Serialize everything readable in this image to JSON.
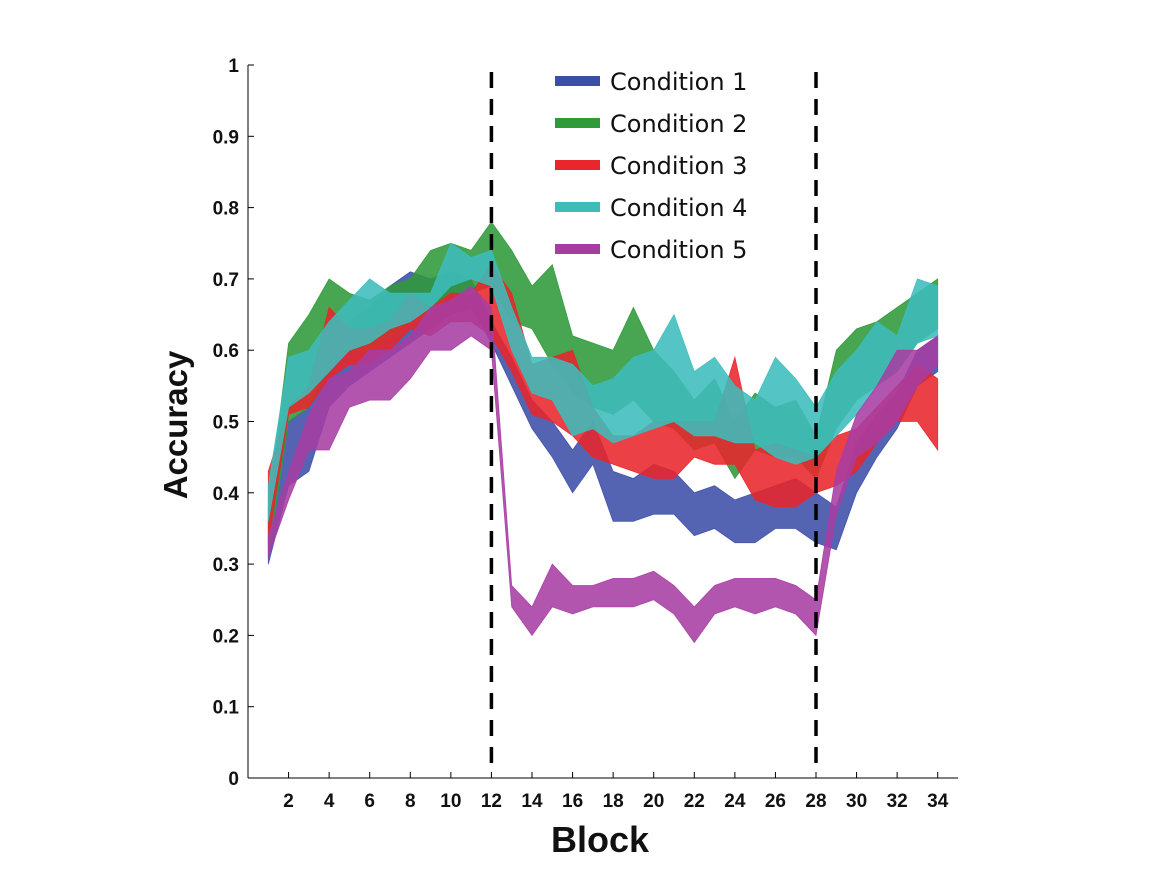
{
  "chart_data": {
    "type": "area",
    "xlabel": "Block",
    "ylabel": "Accuracy",
    "xlim": [
      0,
      35
    ],
    "ylim": [
      0,
      1
    ],
    "xticks": [
      2,
      4,
      6,
      8,
      10,
      12,
      14,
      16,
      18,
      20,
      22,
      24,
      26,
      28,
      30,
      32,
      34
    ],
    "yticks": [
      0,
      0.1,
      0.2,
      0.3,
      0.4,
      0.5,
      0.6,
      0.7,
      0.8,
      0.9,
      1
    ],
    "ytick_labels": [
      "0",
      "0.1",
      "0.2",
      "0.3",
      "0.4",
      "0.5",
      "0.6",
      "0.7",
      "0.8",
      "0.9",
      "1"
    ],
    "vlines": [
      12,
      28
    ],
    "legend_position": "top-center",
    "x": [
      1,
      2,
      3,
      4,
      5,
      6,
      7,
      8,
      9,
      10,
      11,
      12,
      13,
      14,
      15,
      16,
      17,
      18,
      19,
      20,
      21,
      22,
      23,
      24,
      25,
      26,
      27,
      28,
      29,
      30,
      31,
      32,
      33,
      34
    ],
    "series": [
      {
        "name": "Condition 1",
        "color": "#3c4fa8",
        "lower": [
          0.3,
          0.41,
          0.43,
          0.52,
          0.55,
          0.57,
          0.59,
          0.61,
          0.63,
          0.65,
          0.66,
          0.61,
          0.55,
          0.49,
          0.45,
          0.4,
          0.44,
          0.36,
          0.36,
          0.37,
          0.37,
          0.34,
          0.35,
          0.33,
          0.33,
          0.35,
          0.35,
          0.33,
          0.32,
          0.4,
          0.45,
          0.49,
          0.55,
          0.57
        ],
        "upper": [
          0.36,
          0.5,
          0.52,
          0.6,
          0.64,
          0.66,
          0.69,
          0.71,
          0.7,
          0.71,
          0.7,
          0.64,
          0.59,
          0.53,
          0.5,
          0.46,
          0.5,
          0.43,
          0.42,
          0.44,
          0.43,
          0.4,
          0.41,
          0.39,
          0.4,
          0.41,
          0.42,
          0.4,
          0.38,
          0.47,
          0.51,
          0.54,
          0.6,
          0.62
        ]
      },
      {
        "name": "Condition 2",
        "color": "#2f9a3a",
        "lower": [
          0.31,
          0.5,
          0.52,
          0.58,
          0.6,
          0.6,
          0.62,
          0.64,
          0.65,
          0.68,
          0.68,
          0.69,
          0.64,
          0.63,
          0.58,
          0.54,
          0.52,
          0.51,
          0.53,
          0.5,
          0.49,
          0.46,
          0.47,
          0.42,
          0.46,
          0.45,
          0.45,
          0.42,
          0.49,
          0.53,
          0.55,
          0.57,
          0.61,
          0.63
        ],
        "upper": [
          0.38,
          0.61,
          0.65,
          0.7,
          0.68,
          0.67,
          0.69,
          0.7,
          0.74,
          0.75,
          0.74,
          0.78,
          0.74,
          0.69,
          0.72,
          0.62,
          0.61,
          0.6,
          0.66,
          0.6,
          0.57,
          0.53,
          0.56,
          0.5,
          0.54,
          0.52,
          0.53,
          0.48,
          0.6,
          0.63,
          0.64,
          0.66,
          0.68,
          0.7
        ]
      },
      {
        "name": "Condition 3",
        "color": "#e8262b",
        "lower": [
          0.33,
          0.51,
          0.52,
          0.56,
          0.58,
          0.58,
          0.6,
          0.63,
          0.62,
          0.64,
          0.64,
          0.62,
          0.57,
          0.51,
          0.5,
          0.48,
          0.45,
          0.44,
          0.43,
          0.42,
          0.42,
          0.45,
          0.44,
          0.44,
          0.39,
          0.38,
          0.38,
          0.4,
          0.41,
          0.43,
          0.47,
          0.5,
          0.5,
          0.46
        ],
        "upper": [
          0.43,
          0.52,
          0.55,
          0.66,
          0.63,
          0.63,
          0.64,
          0.68,
          0.66,
          0.68,
          0.68,
          0.72,
          0.68,
          0.58,
          0.59,
          0.6,
          0.52,
          0.48,
          0.48,
          0.5,
          0.5,
          0.5,
          0.5,
          0.59,
          0.46,
          0.47,
          0.46,
          0.45,
          0.48,
          0.49,
          0.52,
          0.55,
          0.58,
          0.56
        ]
      },
      {
        "name": "Condition 4",
        "color": "#3dbcbc",
        "lower": [
          0.36,
          0.52,
          0.54,
          0.57,
          0.6,
          0.61,
          0.63,
          0.64,
          0.66,
          0.69,
          0.7,
          0.69,
          0.6,
          0.54,
          0.53,
          0.48,
          0.49,
          0.47,
          0.48,
          0.49,
          0.5,
          0.48,
          0.48,
          0.47,
          0.47,
          0.45,
          0.44,
          0.45,
          0.48,
          0.51,
          0.55,
          0.57,
          0.61,
          0.62
        ],
        "upper": [
          0.41,
          0.59,
          0.6,
          0.64,
          0.67,
          0.7,
          0.68,
          0.68,
          0.68,
          0.75,
          0.73,
          0.74,
          0.66,
          0.59,
          0.59,
          0.58,
          0.55,
          0.56,
          0.59,
          0.6,
          0.65,
          0.57,
          0.59,
          0.55,
          0.53,
          0.59,
          0.56,
          0.52,
          0.57,
          0.6,
          0.64,
          0.62,
          0.7,
          0.69
        ]
      },
      {
        "name": "Condition 5",
        "color": "#a73da3",
        "lower": [
          0.31,
          0.39,
          0.46,
          0.46,
          0.52,
          0.53,
          0.53,
          0.56,
          0.6,
          0.6,
          0.62,
          0.6,
          0.24,
          0.2,
          0.24,
          0.23,
          0.24,
          0.24,
          0.24,
          0.25,
          0.23,
          0.19,
          0.23,
          0.24,
          0.23,
          0.24,
          0.23,
          0.2,
          0.37,
          0.45,
          0.47,
          0.5,
          0.55,
          0.58
        ],
        "upper": [
          0.34,
          0.43,
          0.51,
          0.56,
          0.57,
          0.6,
          0.6,
          0.62,
          0.66,
          0.67,
          0.69,
          0.66,
          0.27,
          0.24,
          0.3,
          0.27,
          0.27,
          0.28,
          0.28,
          0.29,
          0.27,
          0.24,
          0.27,
          0.28,
          0.28,
          0.28,
          0.27,
          0.25,
          0.43,
          0.51,
          0.55,
          0.6,
          0.6,
          0.62
        ]
      }
    ]
  }
}
